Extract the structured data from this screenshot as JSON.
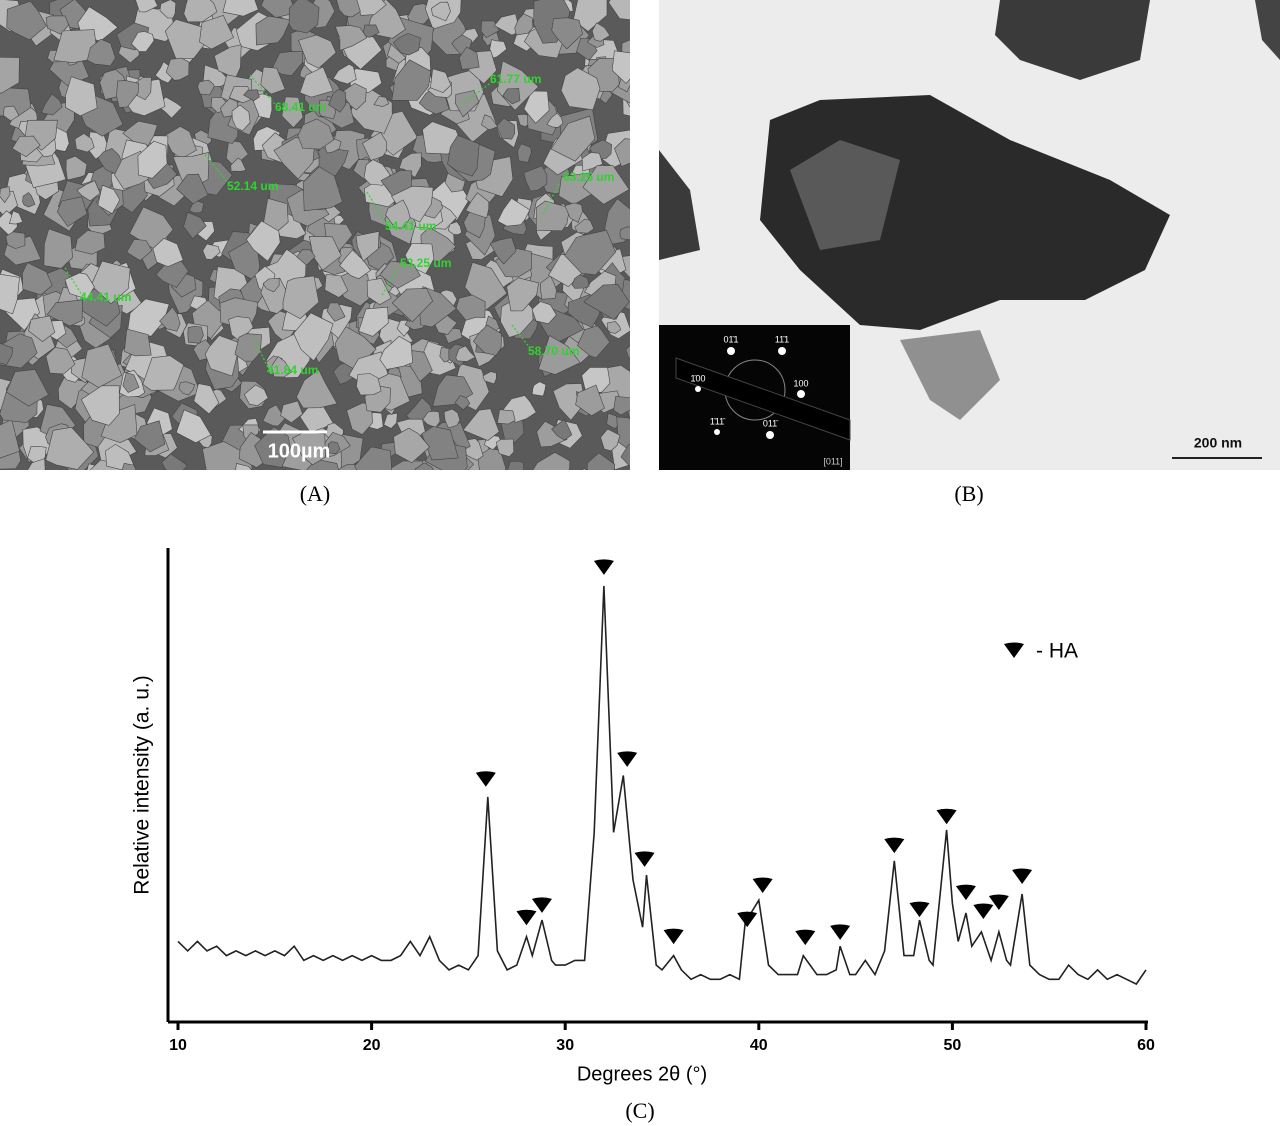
{
  "panel_a": {
    "label": "(A)",
    "scale_bar": "100µm",
    "measurements": [
      "68.41 um",
      "61.77 um",
      "52.14 um",
      "63.25 um",
      "54.41 um",
      "53.25 um",
      "44.41 um",
      "58.70 um",
      "41.84 um"
    ]
  },
  "panel_b": {
    "label": "(B)",
    "scale_bar": "200 nm",
    "zone_axis": "[011]",
    "diffraction_labels": [
      "01̄1",
      "11̄1",
      "1̄00",
      "100",
      "1̄11̄",
      "011̄"
    ]
  },
  "panel_c": {
    "label": "(C)"
  },
  "chart_data": {
    "type": "line",
    "xlabel": "Degrees 2θ (°)",
    "ylabel": "Relative intensity (a. u.)",
    "xlim": [
      10,
      60
    ],
    "ylim": [
      0,
      100
    ],
    "xticks": [
      10,
      20,
      30,
      40,
      50,
      60
    ],
    "series": [
      {
        "color": "#222222",
        "x": [
          10,
          10.5,
          11,
          11.5,
          12,
          12.5,
          13,
          13.5,
          14,
          14.5,
          15,
          15.5,
          16,
          16.5,
          17,
          17.5,
          18,
          18.5,
          19,
          19.5,
          20,
          20.5,
          21,
          21.5,
          22,
          22.5,
          23,
          23.5,
          24,
          24.5,
          25,
          25.5,
          26,
          26.5,
          27,
          27.5,
          28,
          28.3,
          28.8,
          29.3,
          29.5,
          30,
          30.5,
          31,
          31.5,
          32,
          32.5,
          33,
          33.5,
          34,
          34.2,
          34.7,
          35,
          35.6,
          36,
          36.5,
          37,
          37.5,
          38,
          38.5,
          39,
          39.3,
          40,
          40.5,
          41,
          41.5,
          42,
          42.3,
          43,
          43.5,
          44,
          44.2,
          44.7,
          45,
          45.5,
          46,
          46.5,
          47,
          47.5,
          48,
          48.3,
          48.8,
          49,
          49.7,
          50,
          50.3,
          50.7,
          51,
          51.5,
          52,
          52.4,
          52.8,
          53,
          53.6,
          54,
          54.5,
          55,
          55.5,
          56,
          56.5,
          57,
          57.5,
          58,
          58.5,
          59,
          59.5,
          60
        ],
        "values": [
          17,
          15,
          17,
          15,
          16,
          14,
          15,
          14,
          15,
          14,
          15,
          14,
          16,
          13,
          14,
          13,
          14,
          13,
          14,
          13,
          14,
          13,
          13,
          14,
          17,
          14,
          18,
          13,
          11,
          12,
          11,
          14,
          47.5,
          15,
          11,
          12,
          18,
          14,
          21.5,
          13,
          12,
          12,
          13,
          13,
          40,
          92,
          40,
          52,
          30,
          20,
          31,
          12,
          11,
          14,
          11,
          9,
          10,
          9,
          9,
          10,
          9,
          21,
          25.7,
          12,
          10,
          10,
          10,
          14,
          10,
          10,
          11,
          16,
          10,
          10,
          13,
          10,
          15,
          34,
          14,
          14,
          21.5,
          13,
          12,
          40.5,
          25,
          17,
          23,
          16,
          19,
          13,
          19,
          13,
          12,
          27,
          12,
          10,
          9,
          9,
          12,
          10,
          9,
          11,
          9,
          10,
          9,
          8,
          11
        ]
      }
    ],
    "markers": {
      "name": "- HA",
      "color": "#000000",
      "x": [
        25.9,
        28.0,
        28.8,
        32.0,
        33.2,
        34.1,
        35.6,
        39.4,
        40.2,
        42.4,
        44.2,
        47.0,
        48.3,
        49.7,
        50.7,
        51.6,
        52.4,
        53.6
      ],
      "values": [
        51.1,
        21.9,
        24.5,
        95.8,
        55.3,
        34.2,
        17.9,
        21.5,
        28.7,
        17.7,
        18.8,
        37.1,
        23.6,
        43.2,
        27.2,
        23.2,
        25.1,
        30.6
      ]
    }
  }
}
